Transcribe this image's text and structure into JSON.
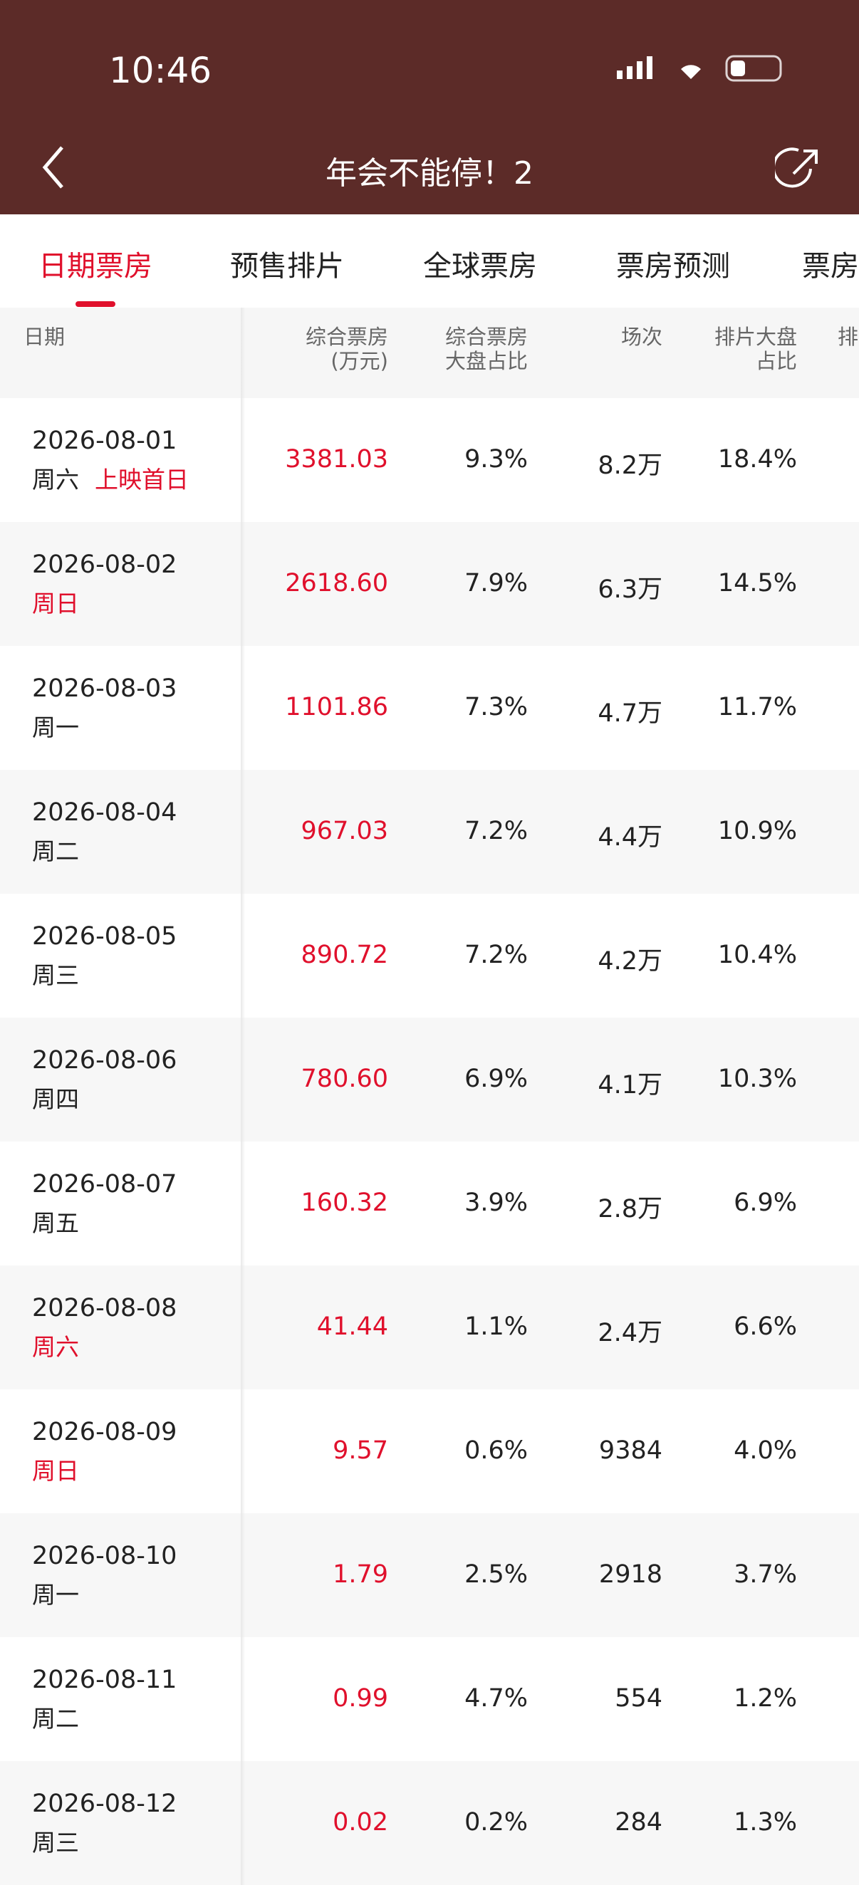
{
  "status_bar": {
    "time": "10:46"
  },
  "header": {
    "title": "年会不能停！2"
  },
  "tabs": {
    "items": [
      "日期票房",
      "预售排片",
      "全球票房",
      "票房预测",
      "票房"
    ],
    "active": 0
  },
  "table": {
    "columns": [
      [
        "日期"
      ],
      [
        "综合票房",
        "(万元)"
      ],
      [
        "综合票房",
        "大盘占比"
      ],
      [
        "场次"
      ],
      [
        "排片大盘",
        "占比"
      ],
      [
        "排"
      ]
    ],
    "rows": [
      {
        "date": "2026-08-01",
        "weekday": "周六",
        "tag": "上映首日",
        "weekday_highlight": false,
        "box_office": "3381.03",
        "share": "9.3%",
        "shows": "8.2万",
        "schedule": "18.4%"
      },
      {
        "date": "2026-08-02",
        "weekday": "周日",
        "weekday_highlight": true,
        "box_office": "2618.60",
        "share": "7.9%",
        "shows": "6.3万",
        "schedule": "14.5%"
      },
      {
        "date": "2026-08-03",
        "weekday": "周一",
        "weekday_highlight": false,
        "box_office": "1101.86",
        "share": "7.3%",
        "shows": "4.7万",
        "schedule": "11.7%"
      },
      {
        "date": "2026-08-04",
        "weekday": "周二",
        "weekday_highlight": false,
        "box_office": "967.03",
        "share": "7.2%",
        "shows": "4.4万",
        "schedule": "10.9%"
      },
      {
        "date": "2026-08-05",
        "weekday": "周三",
        "weekday_highlight": false,
        "box_office": "890.72",
        "share": "7.2%",
        "shows": "4.2万",
        "schedule": "10.4%"
      },
      {
        "date": "2026-08-06",
        "weekday": "周四",
        "weekday_highlight": false,
        "box_office": "780.60",
        "share": "6.9%",
        "shows": "4.1万",
        "schedule": "10.3%"
      },
      {
        "date": "2026-08-07",
        "weekday": "周五",
        "weekday_highlight": false,
        "box_office": "160.32",
        "share": "3.9%",
        "shows": "2.8万",
        "schedule": "6.9%"
      },
      {
        "date": "2026-08-08",
        "weekday": "周六",
        "weekday_highlight": true,
        "box_office": "41.44",
        "share": "1.1%",
        "shows": "2.4万",
        "schedule": "6.6%"
      },
      {
        "date": "2026-08-09",
        "weekday": "周日",
        "weekday_highlight": true,
        "box_office": "9.57",
        "share": "0.6%",
        "shows": "9384",
        "schedule": "4.0%"
      },
      {
        "date": "2026-08-10",
        "weekday": "周一",
        "weekday_highlight": false,
        "box_office": "1.79",
        "share": "2.5%",
        "shows": "2918",
        "schedule": "3.7%"
      },
      {
        "date": "2026-08-11",
        "weekday": "周二",
        "weekday_highlight": false,
        "box_office": "0.99",
        "share": "4.7%",
        "shows": "554",
        "schedule": "1.2%"
      },
      {
        "date": "2026-08-12",
        "weekday": "周三",
        "weekday_highlight": false,
        "box_office": "0.02",
        "share": "0.2%",
        "shows": "284",
        "schedule": "1.3%"
      }
    ]
  }
}
